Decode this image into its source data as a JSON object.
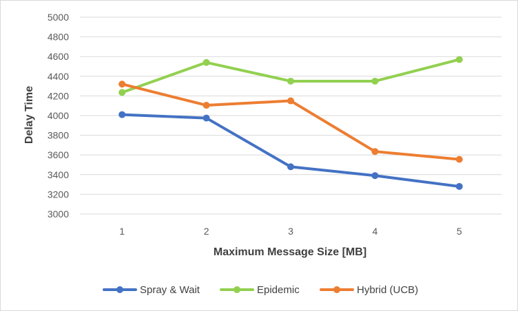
{
  "chart_data": {
    "type": "line",
    "title": "",
    "xlabel": "Maximum Message Size [MB]",
    "ylabel": "Delay Time",
    "categories": [
      "1",
      "2",
      "3",
      "4",
      "5"
    ],
    "ylim": [
      3000,
      5000
    ],
    "yticks": [
      3000,
      3200,
      3400,
      3600,
      3800,
      4000,
      4200,
      4400,
      4600,
      4800,
      5000
    ],
    "grid": true,
    "legend_position": "bottom",
    "series": [
      {
        "name": "Spray & Wait",
        "color": "#4472c4",
        "values": [
          4010,
          3975,
          3480,
          3390,
          3280
        ]
      },
      {
        "name": "Epidemic",
        "color": "#92d050",
        "values": [
          4235,
          4540,
          4350,
          4350,
          4570
        ]
      },
      {
        "name": "Hybrid (UCB)",
        "color": "#ed7d31",
        "values": [
          4320,
          4105,
          4150,
          3635,
          3555
        ]
      }
    ]
  }
}
